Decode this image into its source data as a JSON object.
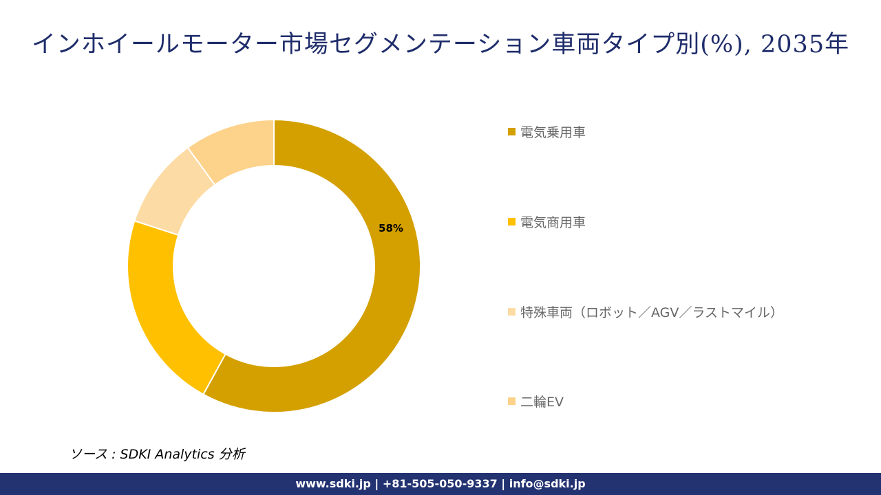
{
  "title": "インホイールモーター市場セグメンテーション車両タイプ別(%), 2035年",
  "chart_data": {
    "type": "pie",
    "subtype": "donut",
    "categories": [
      "電気乗用車",
      "電気商用車",
      "特殊車両（ロボット／AGV／ラストマイル）",
      "二輪EV"
    ],
    "values": [
      58,
      22,
      10,
      10
    ],
    "colors": [
      "#D4A000",
      "#FFC000",
      "#FDDBA4",
      "#FDD28A"
    ],
    "data_labels": [
      "58%",
      "",
      "",
      ""
    ],
    "legend_position": "right"
  },
  "source": "ソース : SDKI Analytics  分析",
  "footer": "www.sdki.jp | +81-505-050-9337 | info@sdki.jp"
}
